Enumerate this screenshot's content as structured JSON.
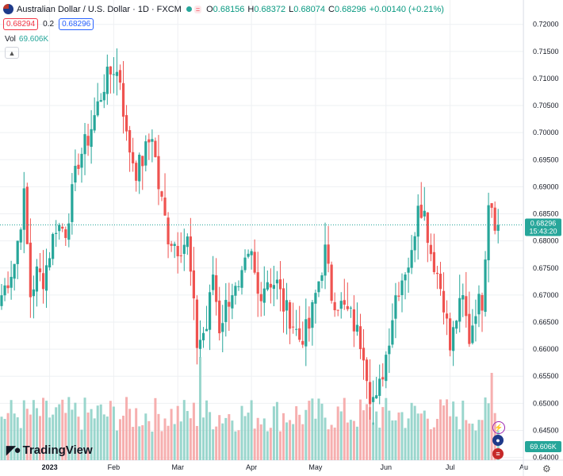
{
  "header": {
    "symbol_name": "Australian Dollar / U.S. Dollar · 1D · FXCM",
    "open_label": "O",
    "open": "0.68156",
    "high_label": "H",
    "high": "0.68372",
    "low_label": "L",
    "low": "0.68074",
    "close_label": "C",
    "close": "0.68296",
    "change": "+0.00140 (+0.21%)",
    "bid": "0.68294",
    "spread": "0.2",
    "ask": "0.68296",
    "vol_label": "Vol",
    "vol_value": "69.606K",
    "collapse_icon": "chevron-up-icon"
  },
  "price_tag": {
    "price": "0.68296",
    "countdown": "15:43:20"
  },
  "volume_tag": "69.606K",
  "brand": "TradingView",
  "colors": {
    "up": "#26a69a",
    "down": "#ef5350",
    "up_vol": "#8fd1c8",
    "down_vol": "#f5a6a6",
    "bg": "#ffffff",
    "grid": "#eef0f3"
  },
  "chart_data": {
    "type": "candlestick",
    "title": "Australian Dollar / U.S. Dollar · 1D · FXCM",
    "ylim": [
      0.6395,
      0.7245
    ],
    "yticks": [
      "0.72000",
      "0.71500",
      "0.71000",
      "0.70500",
      "0.70000",
      "0.69500",
      "0.69000",
      "0.68500",
      "0.68000",
      "0.67500",
      "0.67000",
      "0.66500",
      "0.66000",
      "0.65500",
      "0.65000",
      "0.64500",
      "0.64000"
    ],
    "xticks": [
      {
        "label": "2023",
        "index": 15
      },
      {
        "label": "Feb",
        "index": 35
      },
      {
        "label": "Mar",
        "index": 55
      },
      {
        "label": "Apr",
        "index": 78
      },
      {
        "label": "May",
        "index": 98
      },
      {
        "label": "Jun",
        "index": 120
      },
      {
        "label": "Jul",
        "index": 140
      },
      {
        "label": "Au",
        "index": 163
      }
    ],
    "last_price": 0.68296,
    "keyframes": [
      [
        0,
        0.67
      ],
      [
        4,
        0.676
      ],
      [
        7,
        0.688
      ],
      [
        9,
        0.67
      ],
      [
        11,
        0.674
      ],
      [
        13,
        0.673
      ],
      [
        17,
        0.683
      ],
      [
        20,
        0.682
      ],
      [
        24,
        0.695
      ],
      [
        27,
        0.699
      ],
      [
        32,
        0.709
      ],
      [
        35,
        0.712
      ],
      [
        37,
        0.71
      ],
      [
        39,
        0.699
      ],
      [
        42,
        0.693
      ],
      [
        44,
        0.695
      ],
      [
        47,
        0.7
      ],
      [
        49,
        0.69
      ],
      [
        52,
        0.681
      ],
      [
        55,
        0.679
      ],
      [
        58,
        0.68
      ],
      [
        61,
        0.661
      ],
      [
        64,
        0.664
      ],
      [
        66,
        0.674
      ],
      [
        68,
        0.664
      ],
      [
        70,
        0.668
      ],
      [
        72,
        0.671
      ],
      [
        74,
        0.67
      ],
      [
        76,
        0.675
      ],
      [
        78,
        0.677
      ],
      [
        80,
        0.67
      ],
      [
        83,
        0.673
      ],
      [
        86,
        0.672
      ],
      [
        88,
        0.668
      ],
      [
        90,
        0.666
      ],
      [
        93,
        0.662
      ],
      [
        96,
        0.664
      ],
      [
        98,
        0.67
      ],
      [
        101,
        0.678
      ],
      [
        103,
        0.67
      ],
      [
        106,
        0.668
      ],
      [
        109,
        0.666
      ],
      [
        111,
        0.663
      ],
      [
        113,
        0.66
      ],
      [
        115,
        0.652
      ],
      [
        117,
        0.65
      ],
      [
        120,
        0.659
      ],
      [
        123,
        0.67
      ],
      [
        126,
        0.675
      ],
      [
        128,
        0.677
      ],
      [
        130,
        0.688
      ],
      [
        132,
        0.685
      ],
      [
        134,
        0.678
      ],
      [
        136,
        0.674
      ],
      [
        138,
        0.669
      ],
      [
        140,
        0.66
      ],
      [
        142,
        0.666
      ],
      [
        144,
        0.669
      ],
      [
        146,
        0.662
      ],
      [
        148,
        0.668
      ],
      [
        150,
        0.669
      ],
      [
        152,
        0.688
      ],
      [
        153,
        0.687
      ],
      [
        154,
        0.684
      ],
      [
        155,
        0.683
      ]
    ],
    "volume_range": [
      0,
      1
    ]
  }
}
